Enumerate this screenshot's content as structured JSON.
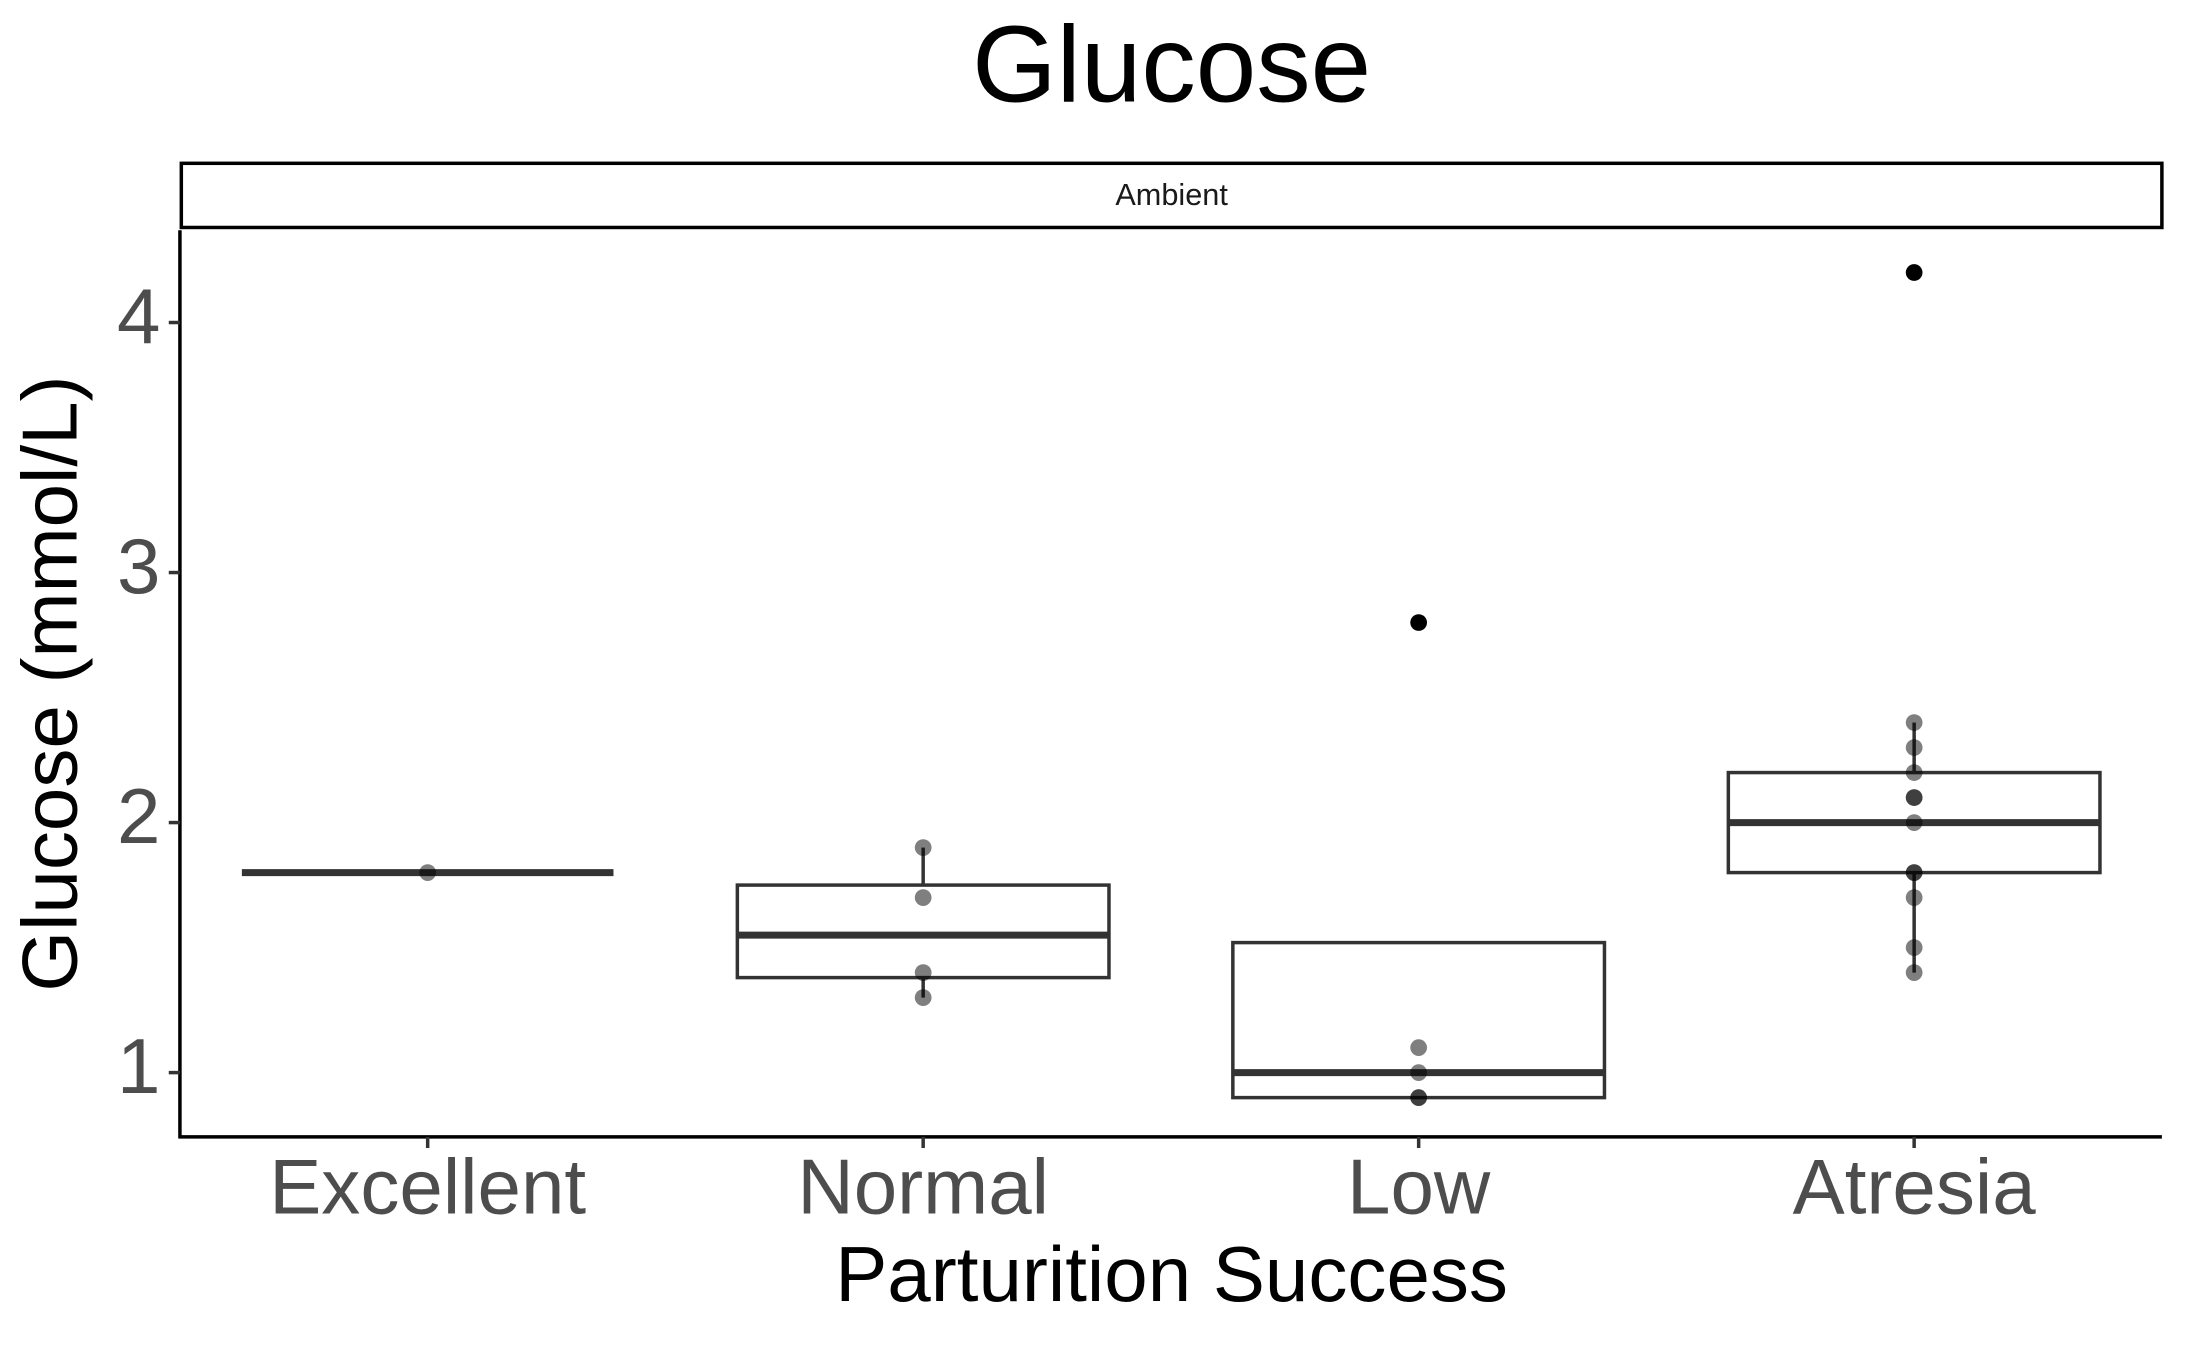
{
  "chart_data": {
    "type": "box",
    "title": "Glucose",
    "facet": "Ambient",
    "x_label": "Parturition Success",
    "y_label": "Glucose (mmol/L)",
    "categories": [
      "Excellent",
      "Normal",
      "Low",
      "Atresia"
    ],
    "boxes": [
      {
        "whisker_low": 1.8,
        "q1": 1.8,
        "median": 1.8,
        "q3": 1.8,
        "whisker_high": 1.8,
        "outliers": [],
        "points": [
          1.8
        ]
      },
      {
        "whisker_low": 1.3,
        "q1": 1.38,
        "median": 1.55,
        "q3": 1.75,
        "whisker_high": 1.9,
        "outliers": [],
        "points": [
          1.9,
          1.7,
          1.4,
          1.3
        ]
      },
      {
        "whisker_low": 0.9,
        "q1": 0.9,
        "median": 1.0,
        "q3": 1.52,
        "whisker_high": 1.52,
        "outliers": [
          2.8
        ],
        "points": [
          1.1,
          0.9,
          0.9,
          1.0
        ]
      },
      {
        "whisker_low": 1.4,
        "q1": 1.8,
        "median": 2.0,
        "q3": 2.2,
        "whisker_high": 2.4,
        "outliers": [
          4.2
        ],
        "points": [
          2.4,
          2.3,
          2.2,
          2.1,
          2.1,
          2.0,
          1.8,
          1.8,
          1.7,
          1.5,
          1.4
        ]
      }
    ],
    "box_color": "#333333",
    "point_color": "#000000",
    "ylim": [
      0.743,
      4.369
    ],
    "yticks": [
      1,
      2,
      3,
      4
    ],
    "grid": false
  }
}
